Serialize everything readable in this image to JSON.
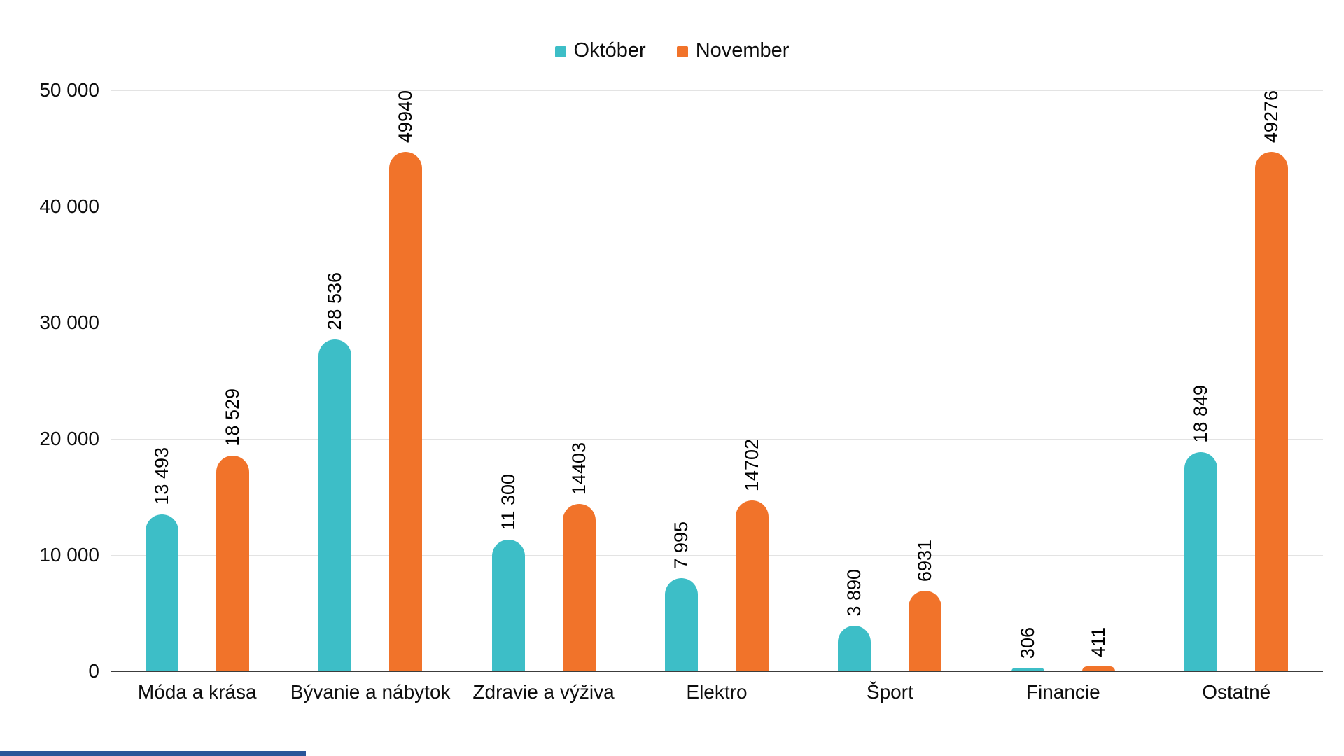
{
  "chart_data": {
    "type": "bar",
    "title": "",
    "xlabel": "",
    "ylabel": "",
    "categories": [
      "Móda a krása",
      "Bývanie a nábytok",
      "Zdravie a výživa",
      "Elektro",
      "Šport",
      "Financie",
      "Ostatné"
    ],
    "series": [
      {
        "name": "Október",
        "color": "#3dbec7",
        "values": [
          13493,
          28536,
          11300,
          7995,
          3890,
          306,
          18849
        ],
        "labels": [
          "13 493",
          "28 536",
          "11 300",
          "7 995",
          "3 890",
          "306",
          "18 849"
        ]
      },
      {
        "name": "November",
        "color": "#f1732a",
        "values": [
          18529,
          49940,
          14403,
          14702,
          6931,
          411,
          49276
        ],
        "labels": [
          "18 529",
          "49940",
          "14403",
          "14702",
          "6931",
          "411",
          "49276"
        ]
      }
    ],
    "y_axis": {
      "min": 0,
      "max": 50000,
      "tick_step": 10000,
      "tick_labels": [
        "50 000",
        "40 000",
        "30 000",
        "20 000",
        "10 000",
        "0"
      ]
    },
    "legend_position": "top",
    "grid": true,
    "value_labels_rotated": true
  },
  "colors": {
    "gridline": "#e3e3e3",
    "axis_line": "#3c3c3c",
    "text": "#0d0d0d",
    "bottom_strip": "#2a5699"
  }
}
